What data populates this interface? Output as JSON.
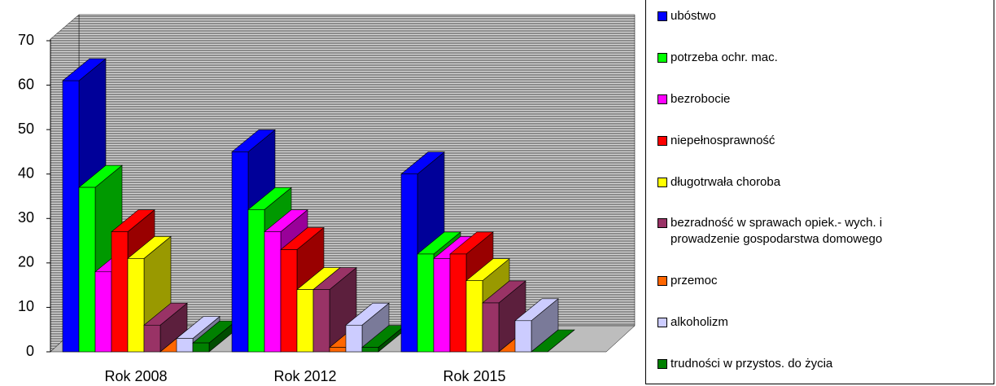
{
  "chart_data": {
    "type": "bar3d",
    "categories": [
      "Rok 2008",
      "Rok 2012",
      "Rok 2015"
    ],
    "series": [
      {
        "name": "ubóstwo",
        "color": "#0000ff",
        "values": [
          61,
          45,
          40
        ]
      },
      {
        "name": "potrzeba ochr. mac.",
        "color": "#00ff00",
        "values": [
          37,
          32,
          22
        ]
      },
      {
        "name": "bezrobocie",
        "color": "#ff00ff",
        "values": [
          18,
          27,
          21
        ]
      },
      {
        "name": "niepełnosprawność",
        "color": "#ff0000",
        "values": [
          27,
          23,
          22
        ]
      },
      {
        "name": "długotrwała choroba",
        "color": "#ffff00",
        "values": [
          21,
          14,
          16
        ]
      },
      {
        "name": "bezradność w sprawach opiek.- wych. i prowadzenie gospodarstwa domowego",
        "color": "#993366",
        "values": [
          6,
          14,
          11
        ]
      },
      {
        "name": "przemoc",
        "color": "#ff6600",
        "values": [
          0,
          1,
          0
        ]
      },
      {
        "name": "alkoholizm",
        "color": "#ccccff",
        "values": [
          3,
          6,
          7
        ]
      },
      {
        "name": "trudności w przystos. do życia",
        "color": "#008000",
        "values": [
          2,
          1,
          0
        ]
      }
    ],
    "ylim": [
      0,
      70
    ],
    "yticks": [
      0,
      10,
      20,
      30,
      40,
      50,
      60,
      70
    ]
  }
}
